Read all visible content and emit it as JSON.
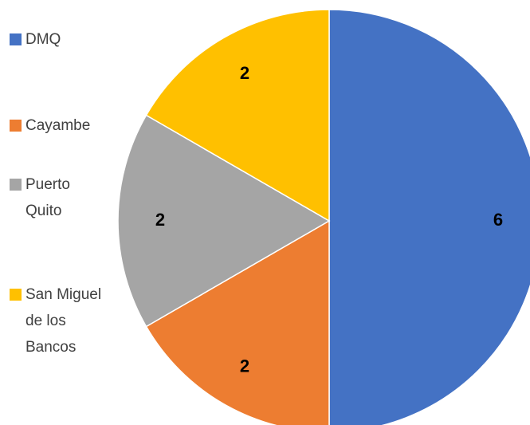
{
  "chart_data": {
    "type": "pie",
    "categories": [
      "DMQ",
      "Cayambe",
      "Puerto Quito",
      "San Miguel de los Bancos"
    ],
    "values": [
      6,
      2,
      2,
      2
    ],
    "colors": [
      "#4472c4",
      "#ed7d31",
      "#a5a5a5",
      "#ffc000"
    ],
    "legend": "left"
  }
}
